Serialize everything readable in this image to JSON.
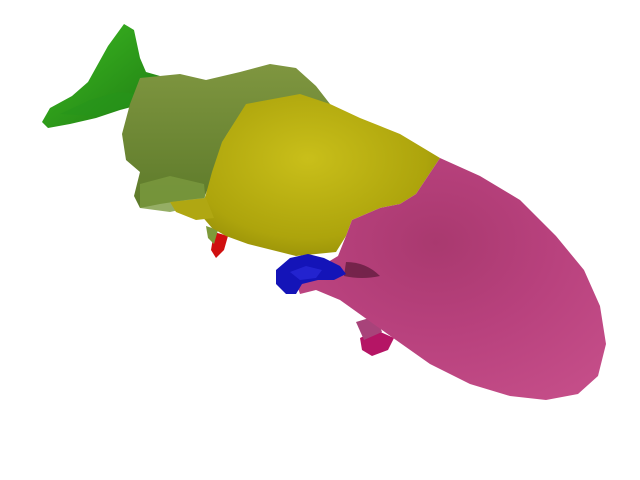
{
  "scene": {
    "background": "#ffffff",
    "object": "segmented-fish-mesh",
    "segments": [
      {
        "name": "tail",
        "color": "#2fa31a"
      },
      {
        "name": "rear-body",
        "color": "#6f8a32"
      },
      {
        "name": "mid-body",
        "color": "#b5ad0e"
      },
      {
        "name": "head",
        "color": "#b8417d"
      },
      {
        "name": "pectoral-fin",
        "color": "#1010b8"
      },
      {
        "name": "pelvic-fin",
        "color": "#b51565"
      },
      {
        "name": "anal-fin",
        "color": "#d01010"
      }
    ]
  }
}
